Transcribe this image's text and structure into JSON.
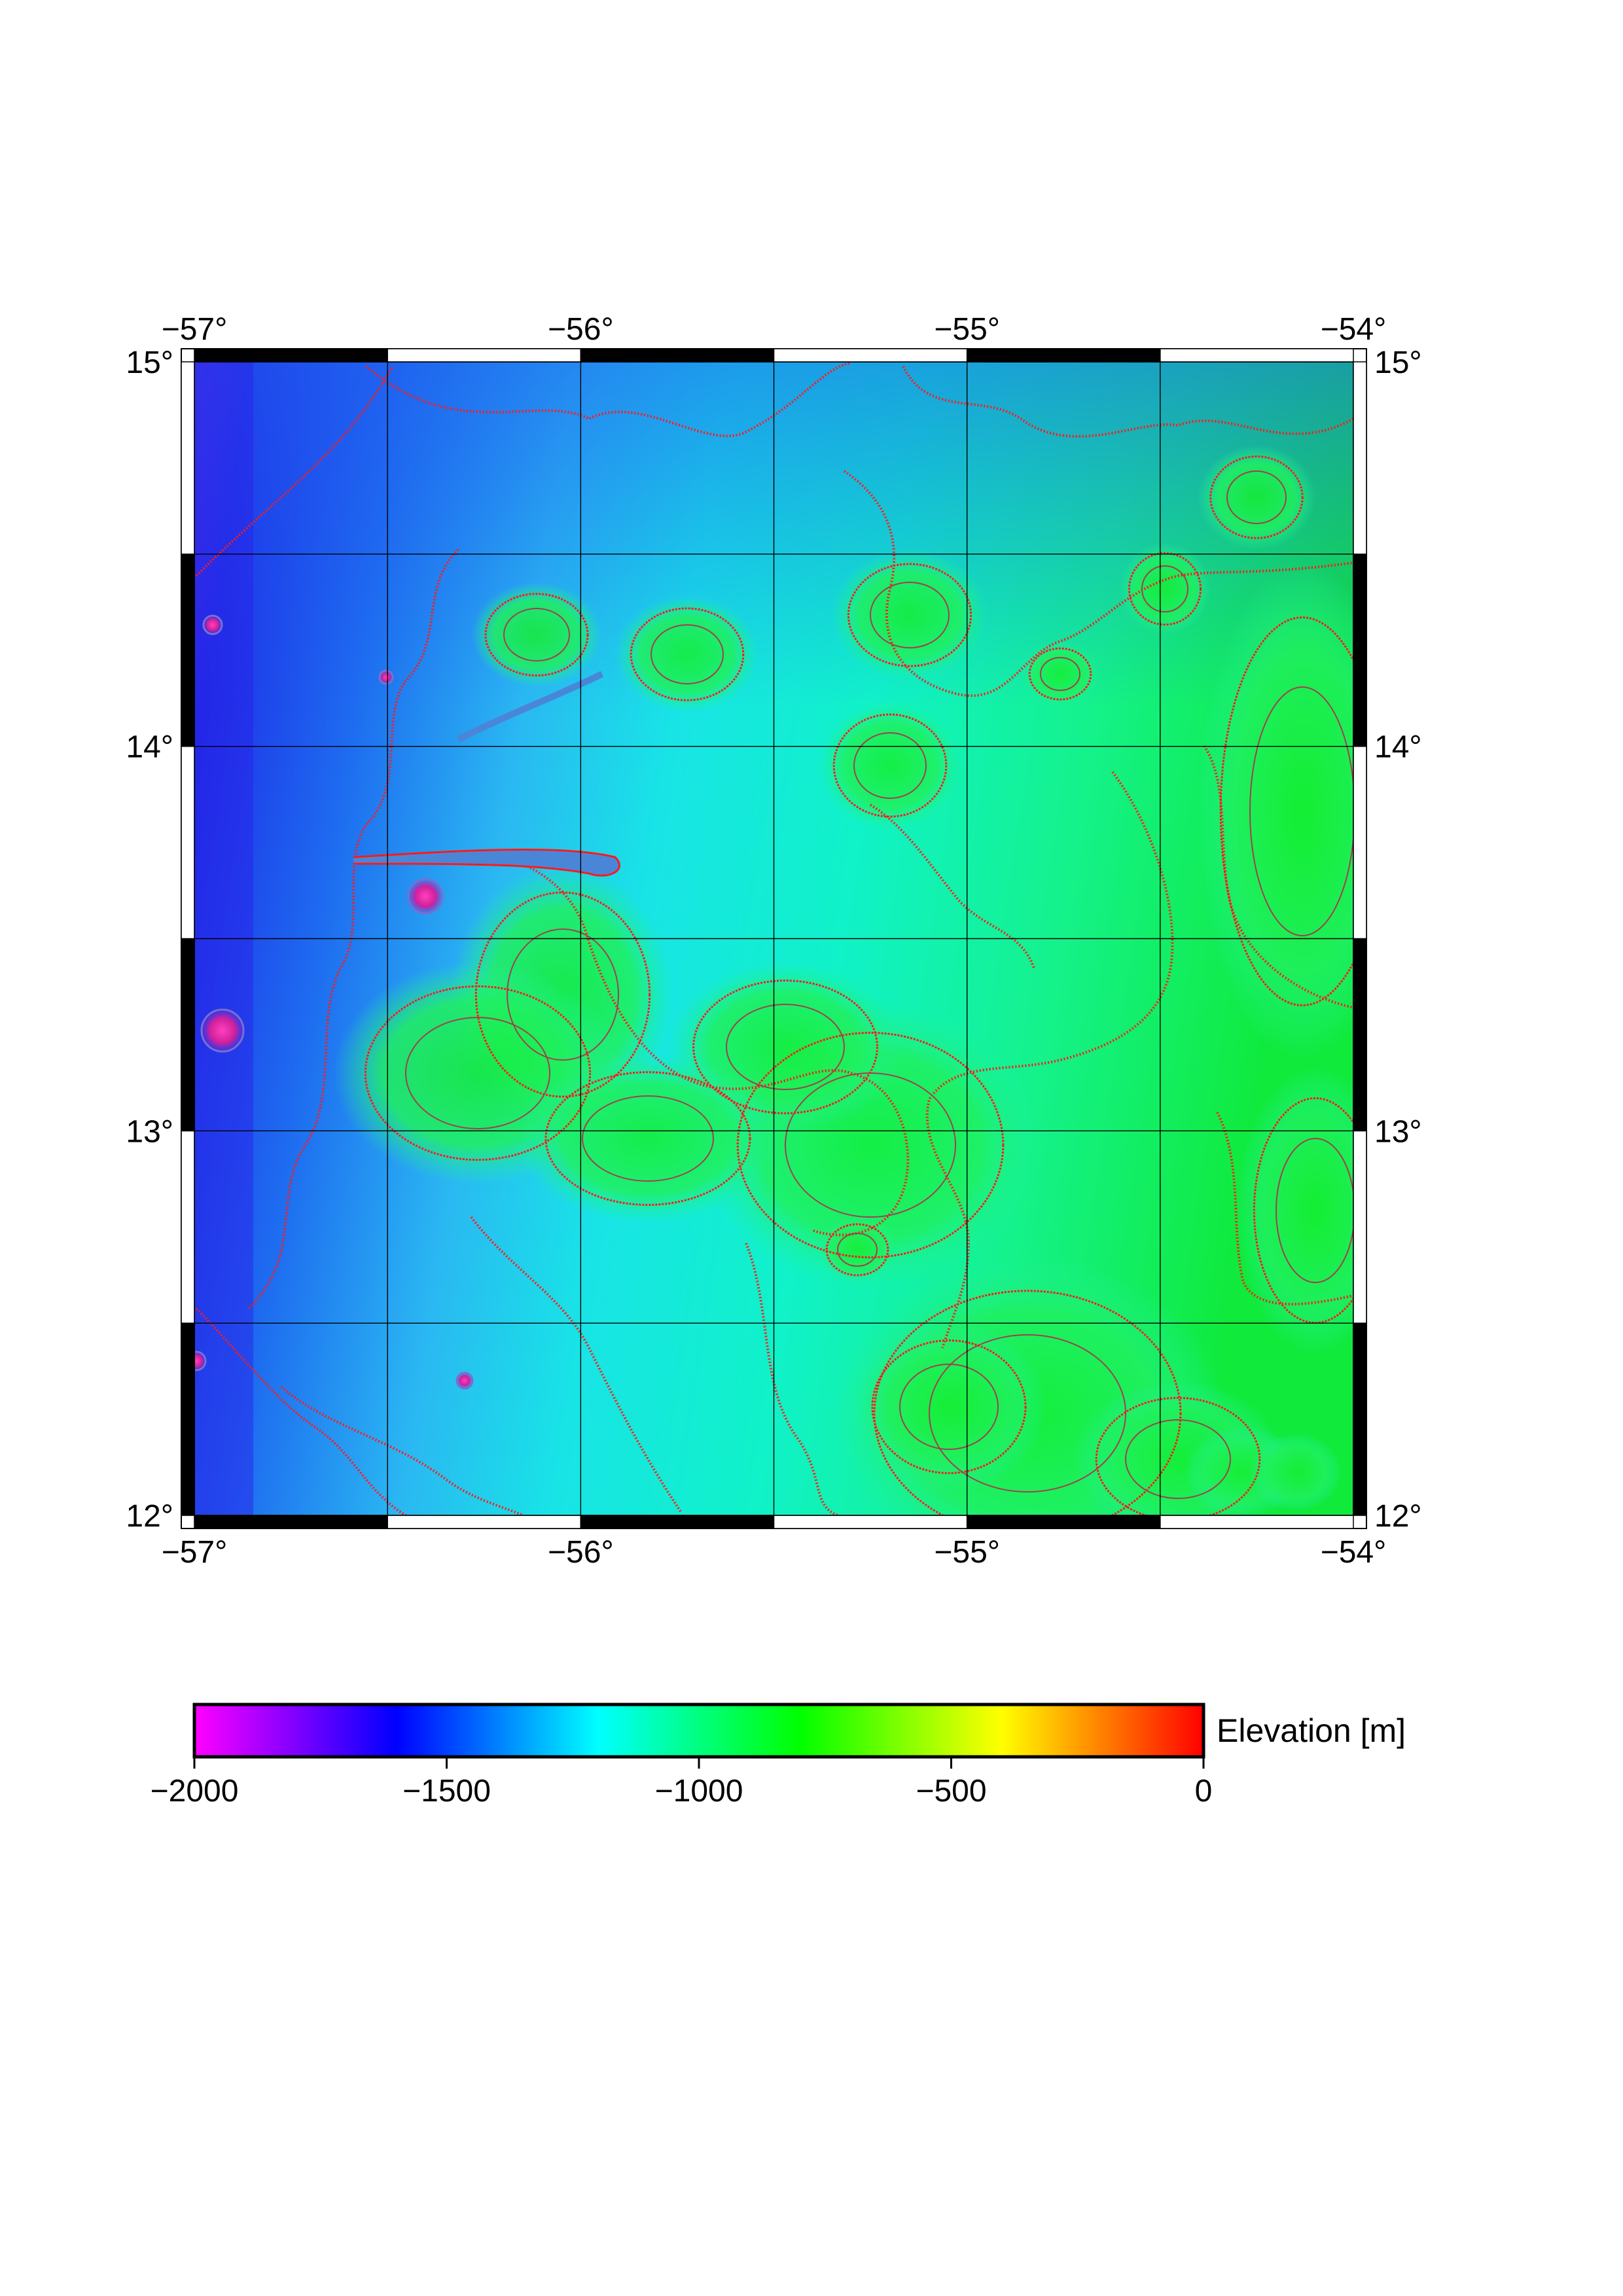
{
  "map": {
    "type": "elevation-map",
    "projection": "mercator",
    "region": {
      "lon_min": -57,
      "lon_max": -54,
      "lat_min": 12,
      "lat_max": 15
    },
    "grid_lines": true,
    "frame_style": "fancy-checkered",
    "lon_ticks": [
      {
        "value": -57,
        "label": "−57°"
      },
      {
        "value": -56,
        "label": "−56°"
      },
      {
        "value": -55,
        "label": "−55°"
      },
      {
        "value": -54,
        "label": "−54°"
      }
    ],
    "lat_ticks": [
      {
        "value": 15,
        "label": "15°"
      },
      {
        "value": 14,
        "label": "14°"
      },
      {
        "value": 13,
        "label": "13°"
      },
      {
        "value": 12,
        "label": "12°"
      }
    ],
    "contour_color": "#ff1a1a",
    "grid_line_color": "#000000"
  },
  "colorbar": {
    "label": "Elevation [m]",
    "min": -2000,
    "max": 0,
    "ticks": [
      {
        "value": -2000,
        "label": "−2000"
      },
      {
        "value": -1500,
        "label": "−1500"
      },
      {
        "value": -1000,
        "label": "−1000"
      },
      {
        "value": -500,
        "label": "−500"
      },
      {
        "value": 0,
        "label": "0"
      }
    ],
    "colormap": [
      "#ff00ff",
      "#0000ff",
      "#00ffff",
      "#00ff00",
      "#ffff00",
      "#ff0000"
    ]
  }
}
